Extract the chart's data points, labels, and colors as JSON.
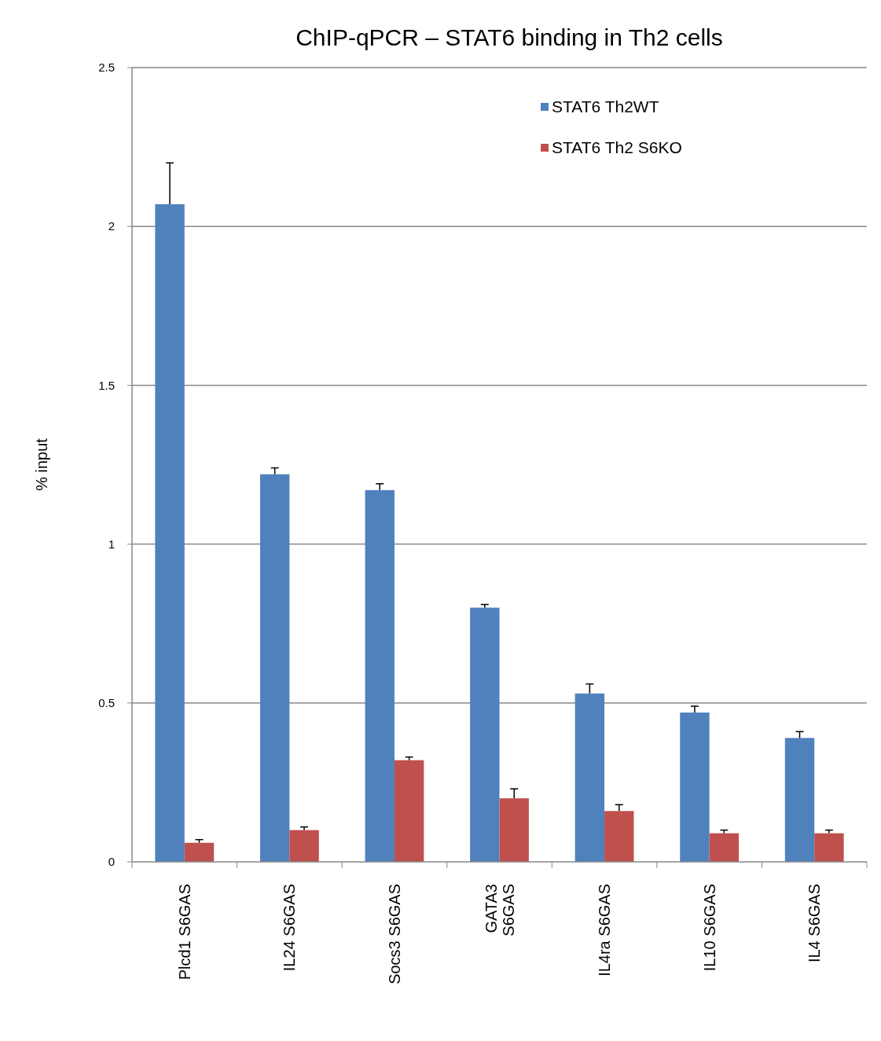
{
  "chart_data": {
    "type": "bar",
    "title": "ChIP-qPCR – STAT6 binding in Th2 cells",
    "ylabel": "% input",
    "categories": [
      "Plcd1 S6GAS",
      "IL24 S6GAS",
      "Socs3 S6GAS",
      "GATA3\nS6GAS",
      "IL4ra S6GAS",
      "IL10 S6GAS",
      "IL4 S6GAS"
    ],
    "series": [
      {
        "name": "STAT6 Th2WT",
        "color": "#4f81bd",
        "values": [
          2.07,
          1.22,
          1.17,
          0.8,
          0.53,
          0.47,
          0.39
        ],
        "errors": [
          [
            2.07,
            2.2
          ],
          [
            1.22,
            1.24
          ],
          [
            1.17,
            1.19
          ],
          [
            0.8,
            0.81
          ],
          [
            0.53,
            0.56
          ],
          [
            0.47,
            0.49
          ],
          [
            0.39,
            0.41
          ]
        ]
      },
      {
        "name": "STAT6 Th2 S6KO",
        "color": "#c0504d",
        "values": [
          0.06,
          0.1,
          0.32,
          0.2,
          0.16,
          0.09,
          0.09
        ],
        "errors": [
          [
            0.06,
            0.07
          ],
          [
            0.1,
            0.11
          ],
          [
            0.32,
            0.33
          ],
          [
            0.2,
            0.23
          ],
          [
            0.16,
            0.18
          ],
          [
            0.09,
            0.1
          ],
          [
            0.09,
            0.1
          ]
        ]
      }
    ],
    "ylim": [
      0,
      2.5
    ],
    "yticks": [
      0,
      0.5,
      1,
      1.5,
      2,
      2.5
    ],
    "grid": "y",
    "legend": "top right"
  }
}
